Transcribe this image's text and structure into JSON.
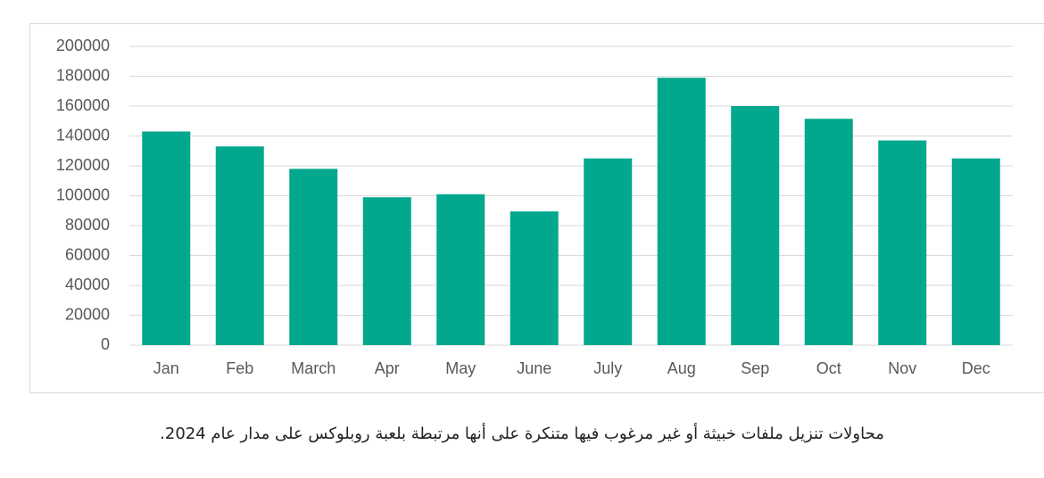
{
  "chart_data": {
    "type": "bar",
    "categories": [
      "Jan",
      "Feb",
      "March",
      "Apr",
      "May",
      "June",
      "July",
      "Aug",
      "Sep",
      "Oct",
      "Nov",
      "Dec"
    ],
    "values": [
      143000,
      133000,
      118000,
      99000,
      101000,
      89500,
      125000,
      179000,
      160000,
      151500,
      137000,
      125000
    ],
    "color": "#02a88e",
    "ylim": [
      0,
      200000
    ],
    "yticks": [
      0,
      20000,
      40000,
      60000,
      80000,
      100000,
      120000,
      140000,
      160000,
      180000,
      200000
    ],
    "grid": true
  },
  "caption": "محاولات تنزيل ملفات خبيثة أو غير مرغوب فيها متنكرة على أنها مرتبطة بلعبة روبلوكس على مدار عام 2024."
}
